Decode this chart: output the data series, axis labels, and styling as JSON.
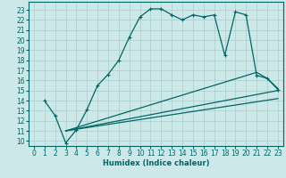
{
  "xlabel": "Humidex (Indice chaleur)",
  "bg_color": "#cce8e8",
  "grid_color": "#aacccc",
  "line_color": "#006666",
  "xlim": [
    -0.5,
    23.5
  ],
  "ylim": [
    9.5,
    23.8
  ],
  "xticks": [
    0,
    1,
    2,
    3,
    4,
    5,
    6,
    7,
    8,
    9,
    10,
    11,
    12,
    13,
    14,
    15,
    16,
    17,
    18,
    19,
    20,
    21,
    22,
    23
  ],
  "yticks": [
    10,
    11,
    12,
    13,
    14,
    15,
    16,
    17,
    18,
    19,
    20,
    21,
    22,
    23
  ],
  "curve1_x": [
    1,
    2,
    3,
    4,
    5,
    6,
    7,
    8,
    9,
    10,
    11,
    12,
    13,
    14,
    15,
    16,
    17,
    18,
    19,
    20,
    21,
    22,
    23
  ],
  "curve1_y": [
    14.0,
    12.5,
    9.8,
    11.1,
    13.1,
    15.5,
    16.6,
    18.0,
    20.3,
    22.3,
    23.1,
    23.1,
    22.5,
    22.0,
    22.5,
    22.3,
    22.5,
    18.5,
    22.8,
    22.5,
    16.5,
    16.2,
    15.1
  ],
  "curve2_x": [
    3,
    21,
    22,
    23
  ],
  "curve2_y": [
    11.0,
    16.8,
    16.2,
    15.2
  ],
  "curve3_x": [
    3,
    23
  ],
  "curve3_y": [
    11.0,
    15.0
  ],
  "curve4_x": [
    3,
    23
  ],
  "curve4_y": [
    11.0,
    14.2
  ],
  "xlabel_fontsize": 6.0,
  "tick_fontsize": 5.5
}
